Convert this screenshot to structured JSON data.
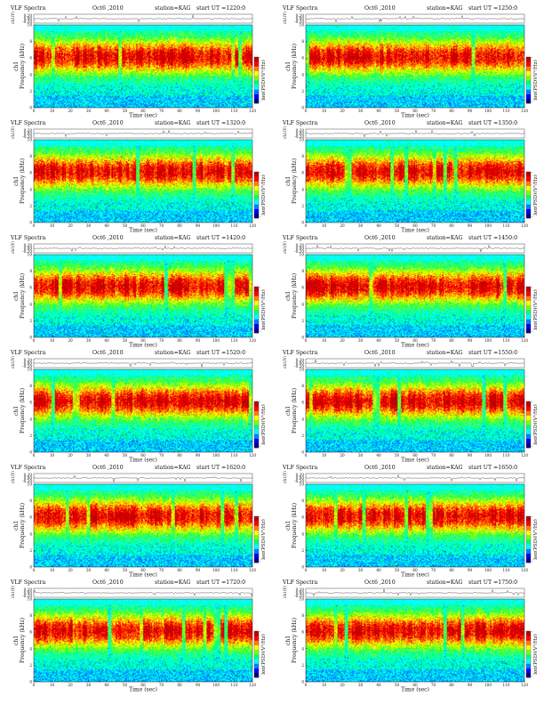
{
  "colors": {
    "colormap": [
      "#000080",
      "#0000ff",
      "#0080ff",
      "#00ffff",
      "#00ff80",
      "#80ff00",
      "#ffff00",
      "#ff8000",
      "#ff0000",
      "#c00000"
    ],
    "background": "#ffffff",
    "trace": "#111111"
  },
  "chart_data": [
    {
      "type": "heatmap",
      "header": {
        "left": "VLF Spectra",
        "date": "Oct6 ,2010",
        "station": "station=KAG",
        "start": "start UT =1220:0"
      },
      "top_ylabel": "ch1(V)",
      "top_yticks": [
        "0.20",
        "0.00",
        "-0.20"
      ],
      "ylabel_a": "ch1",
      "ylabel_b": "Frequency (kHz)",
      "yticks": [
        "0",
        "2",
        "4",
        "6",
        "8",
        "10"
      ],
      "xlabel": "Time (sec)",
      "xticks": [
        "0",
        "10",
        "20",
        "30",
        "40",
        "50",
        "60",
        "70",
        "80",
        "90",
        "100",
        "110",
        "120"
      ],
      "xlim": [
        0,
        120
      ],
      "ylim": [
        0,
        10
      ],
      "cbar_label": "log(PSD)(V²/Hz)",
      "cbar_ticks": [
        "-",
        "-"
      ]
    },
    {
      "type": "heatmap",
      "header": {
        "left": "VLF Spectra",
        "date": "Oct6 ,2010",
        "station": "station=KAG",
        "start": "start UT =1250:0"
      },
      "top_ylabel": "ch1(V)",
      "top_yticks": [
        "0.20",
        "0.00",
        "-0.20"
      ],
      "ylabel_a": "ch1",
      "ylabel_b": "Frequency (kHz)",
      "yticks": [
        "0",
        "2",
        "4",
        "6",
        "8",
        "10"
      ],
      "xlabel": "Time (sec)",
      "xticks": [
        "0",
        "10",
        "20",
        "30",
        "40",
        "50",
        "60",
        "70",
        "80",
        "90",
        "100",
        "110",
        "120"
      ],
      "xlim": [
        0,
        120
      ],
      "ylim": [
        0,
        10
      ],
      "cbar_label": "log(PSD)(V²/Hz)",
      "cbar_ticks": [
        "-",
        "-"
      ]
    },
    {
      "type": "heatmap",
      "header": {
        "left": "VLF Spectra",
        "date": "Oct6 ,2010",
        "station": "station=KAG",
        "start": "start UT =1320:0"
      },
      "top_ylabel": "ch1(V)",
      "top_yticks": [
        "0.20",
        "0.00",
        "-0.20"
      ],
      "ylabel_a": "ch1",
      "ylabel_b": "Frequency (kHz)",
      "yticks": [
        "0",
        "2",
        "4",
        "6",
        "8",
        "10"
      ],
      "xlabel": "Time (sec)",
      "xticks": [
        "0",
        "10",
        "20",
        "30",
        "40",
        "50",
        "60",
        "70",
        "80",
        "90",
        "100",
        "110",
        "120"
      ],
      "xlim": [
        0,
        120
      ],
      "ylim": [
        0,
        10
      ],
      "cbar_label": "log(PSD)(V²/Hz)",
      "cbar_ticks": [
        "-",
        "-"
      ]
    },
    {
      "type": "heatmap",
      "header": {
        "left": "VLF Spectra",
        "date": "Oct6 ,2010",
        "station": "station=KAG",
        "start": "start UT =1350:0"
      },
      "top_ylabel": "ch1(V)",
      "top_yticks": [
        "0.20",
        "0.00",
        "-0.20"
      ],
      "ylabel_a": "ch1",
      "ylabel_b": "Frequency (kHz)",
      "yticks": [
        "0",
        "2",
        "4",
        "6",
        "8",
        "10"
      ],
      "xlabel": "Time (sec)",
      "xticks": [
        "0",
        "10",
        "20",
        "30",
        "40",
        "50",
        "60",
        "70",
        "80",
        "90",
        "100",
        "110",
        "120"
      ],
      "xlim": [
        0,
        120
      ],
      "ylim": [
        0,
        10
      ],
      "cbar_label": "log(PSD)(V²/Hz)",
      "cbar_ticks": [
        "-",
        "-"
      ]
    },
    {
      "type": "heatmap",
      "header": {
        "left": "VLF Spectra",
        "date": "Oct6 ,2010",
        "station": "station=KAG",
        "start": "start UT =1420:0"
      },
      "top_ylabel": "ch1(V)",
      "top_yticks": [
        "0.20",
        "0.00",
        "-0.20"
      ],
      "ylabel_a": "ch1",
      "ylabel_b": "Frequency (kHz)",
      "yticks": [
        "0",
        "2",
        "4",
        "6",
        "8",
        "10"
      ],
      "xlabel": "Time (sec)",
      "xticks": [
        "0",
        "10",
        "20",
        "30",
        "40",
        "50",
        "60",
        "70",
        "80",
        "90",
        "100",
        "110",
        "120"
      ],
      "xlim": [
        0,
        120
      ],
      "ylim": [
        0,
        10
      ],
      "cbar_label": "log(PSD)(V²/Hz)",
      "cbar_ticks": [
        "-",
        "-"
      ]
    },
    {
      "type": "heatmap",
      "header": {
        "left": "VLF Spectra",
        "date": "Oct6 ,2010",
        "station": "station=KAG",
        "start": "start UT =1450:0"
      },
      "top_ylabel": "ch1(V)",
      "top_yticks": [
        "0.20",
        "0.00",
        "-0.20"
      ],
      "ylabel_a": "ch1",
      "ylabel_b": "Frequency (kHz)",
      "yticks": [
        "0",
        "2",
        "4",
        "6",
        "8",
        "10"
      ],
      "xlabel": "Time (sec)",
      "xticks": [
        "0",
        "10",
        "20",
        "30",
        "40",
        "50",
        "60",
        "70",
        "80",
        "90",
        "100",
        "110",
        "120"
      ],
      "xlim": [
        0,
        120
      ],
      "ylim": [
        0,
        10
      ],
      "cbar_label": "log(PSD)(V²/Hz)",
      "cbar_ticks": [
        "-",
        "-"
      ]
    },
    {
      "type": "heatmap",
      "header": {
        "left": "VLF Spectra",
        "date": "Oct6 ,2010",
        "station": "station=KAG",
        "start": "start UT =1520:0"
      },
      "top_ylabel": "ch1(V)",
      "top_yticks": [
        "0.20",
        "0.00",
        "-0.20"
      ],
      "ylabel_a": "ch1",
      "ylabel_b": "Frequency (kHz)",
      "yticks": [
        "0",
        "2",
        "4",
        "6",
        "8",
        "10"
      ],
      "xlabel": "Time (sec)",
      "xticks": [
        "0",
        "10",
        "20",
        "30",
        "40",
        "50",
        "60",
        "70",
        "80",
        "90",
        "100",
        "110",
        "120"
      ],
      "xlim": [
        0,
        120
      ],
      "ylim": [
        0,
        10
      ],
      "cbar_label": "log(PSD)(V²/Hz)",
      "cbar_ticks": [
        "-",
        "-"
      ]
    },
    {
      "type": "heatmap",
      "header": {
        "left": "VLF Spectra",
        "date": "Oct6 ,2010",
        "station": "station=KAG",
        "start": "start UT =1550:0"
      },
      "top_ylabel": "ch1(V)",
      "top_yticks": [
        "0.20",
        "0.00",
        "-0.20"
      ],
      "ylabel_a": "ch1",
      "ylabel_b": "Frequency (kHz)",
      "yticks": [
        "0",
        "2",
        "4",
        "6",
        "8",
        "10"
      ],
      "xlabel": "Time (sec)",
      "xticks": [
        "0",
        "10",
        "20",
        "30",
        "40",
        "50",
        "60",
        "70",
        "80",
        "90",
        "100",
        "110",
        "120"
      ],
      "xlim": [
        0,
        120
      ],
      "ylim": [
        0,
        10
      ],
      "cbar_label": "log(PSD)(V²/Hz)",
      "cbar_ticks": [
        "-",
        "-"
      ]
    },
    {
      "type": "heatmap",
      "header": {
        "left": "VLF Spectra",
        "date": "Oct6 ,2010",
        "station": "station=KAG",
        "start": "start UT =1620:0"
      },
      "top_ylabel": "ch1(V)",
      "top_yticks": [
        "0.20",
        "0.00",
        "-0.20"
      ],
      "ylabel_a": "ch1",
      "ylabel_b": "Frequency (kHz)",
      "yticks": [
        "0",
        "2",
        "4",
        "6",
        "8",
        "10"
      ],
      "xlabel": "Time (sec)",
      "xticks": [
        "0",
        "10",
        "20",
        "30",
        "40",
        "50",
        "60",
        "70",
        "80",
        "90",
        "100",
        "110",
        "120"
      ],
      "xlim": [
        0,
        120
      ],
      "ylim": [
        0,
        10
      ],
      "cbar_label": "log(PSD)(V²/Hz)",
      "cbar_ticks": [
        "-",
        "-"
      ]
    },
    {
      "type": "heatmap",
      "header": {
        "left": "VLF Spectra",
        "date": "Oct6 ,2010",
        "station": "station=KAG",
        "start": "start UT =1650:0"
      },
      "top_ylabel": "ch1(V)",
      "top_yticks": [
        "0.20",
        "0.00",
        "-0.20"
      ],
      "ylabel_a": "ch1",
      "ylabel_b": "Frequency (kHz)",
      "yticks": [
        "0",
        "2",
        "4",
        "6",
        "8",
        "10"
      ],
      "xlabel": "Time (sec)",
      "xticks": [
        "0",
        "10",
        "20",
        "30",
        "40",
        "50",
        "60",
        "70",
        "80",
        "90",
        "100",
        "110",
        "120"
      ],
      "xlim": [
        0,
        120
      ],
      "ylim": [
        0,
        10
      ],
      "cbar_label": "log(PSD)(V²/Hz)",
      "cbar_ticks": [
        "-",
        "-"
      ]
    },
    {
      "type": "heatmap",
      "header": {
        "left": "VLF Spectra",
        "date": "Oct6 ,2010",
        "station": "station=KAG",
        "start": "start UT =1720:0"
      },
      "top_ylabel": "ch1(V)",
      "top_yticks": [
        "0.20",
        "0.00",
        "-0.20"
      ],
      "ylabel_a": "ch1",
      "ylabel_b": "Frequency (kHz)",
      "yticks": [
        "0",
        "2",
        "4",
        "6",
        "8",
        "10"
      ],
      "xlabel": "Time (sec)",
      "xticks": [
        "0",
        "10",
        "20",
        "30",
        "40",
        "50",
        "60",
        "70",
        "80",
        "90",
        "100",
        "110",
        "120"
      ],
      "xlim": [
        0,
        120
      ],
      "ylim": [
        0,
        10
      ],
      "cbar_label": "log(PSD)(V²/Hz)",
      "cbar_ticks": [
        "-",
        "-"
      ]
    },
    {
      "type": "heatmap",
      "header": {
        "left": "VLF Spectra",
        "date": "Oct6 ,2010",
        "station": "station=KAG",
        "start": "start UT =1750:0"
      },
      "top_ylabel": "ch1(V)",
      "top_yticks": [
        "0.20",
        "0.00",
        "-0.20"
      ],
      "ylabel_a": "ch1",
      "ylabel_b": "Frequency (kHz)",
      "yticks": [
        "0",
        "2",
        "4",
        "6",
        "8",
        "10"
      ],
      "xlabel": "Time (sec)",
      "xticks": [
        "0",
        "10",
        "20",
        "30",
        "40",
        "50",
        "60",
        "70",
        "80",
        "90",
        "100",
        "110",
        "120"
      ],
      "xlim": [
        0,
        120
      ],
      "ylim": [
        0,
        10
      ],
      "cbar_label": "log(PSD)(V²/Hz)",
      "cbar_ticks": [
        "-",
        "-"
      ]
    }
  ]
}
